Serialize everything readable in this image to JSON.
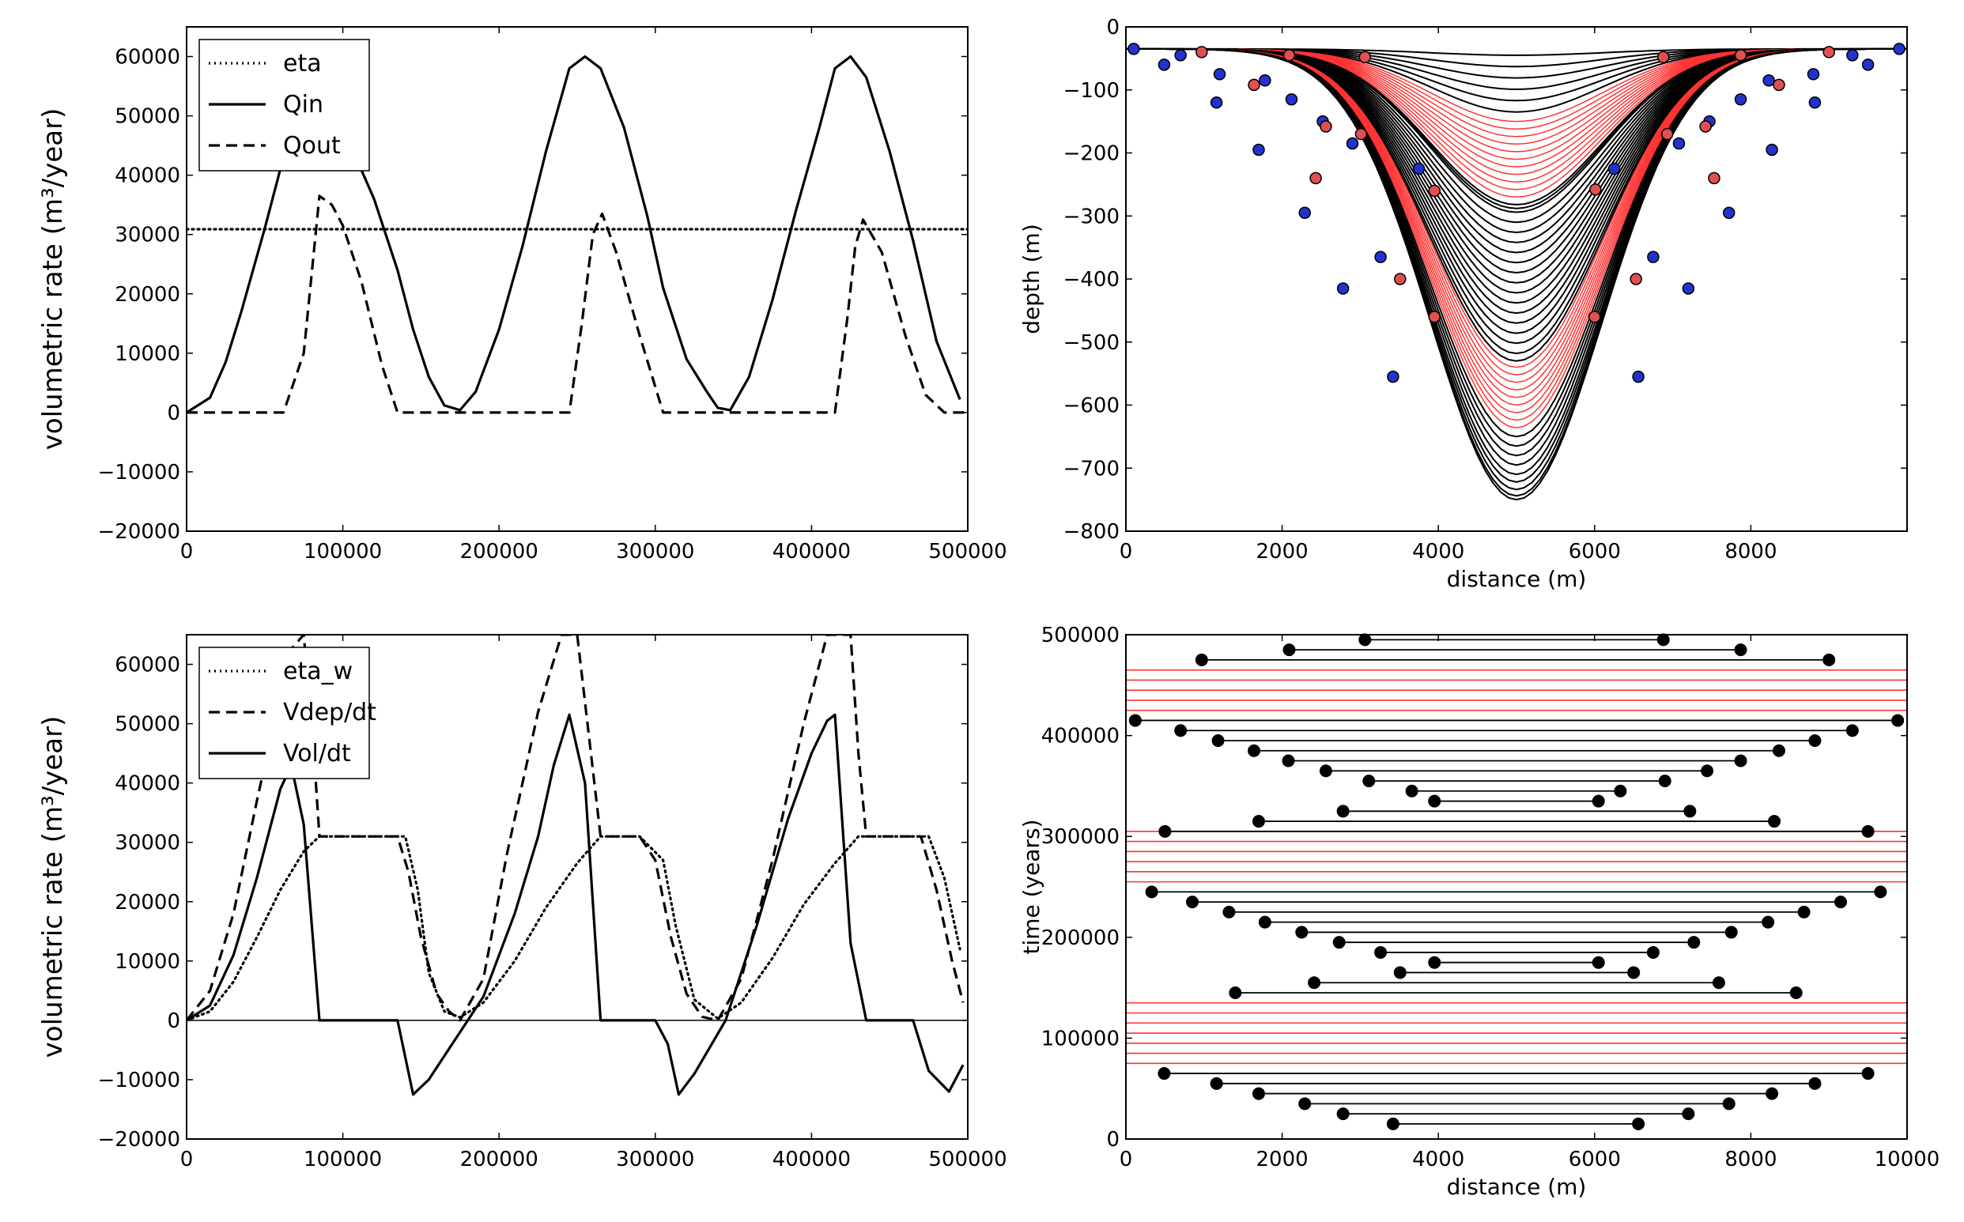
{
  "chart_data": [
    {
      "panel": "top-left",
      "type": "line",
      "title": "",
      "xlabel": "",
      "ylabel": "volumetric rate (m³/year)",
      "xlim": [
        0,
        500000
      ],
      "ylim": [
        -20000,
        65000
      ],
      "xticks": [
        0,
        100000,
        200000,
        300000,
        400000,
        500000
      ],
      "xtick_labels": [
        "0",
        "100000",
        "200000",
        "300000",
        "400000",
        "500000"
      ],
      "yticks": [
        -20000,
        -10000,
        0,
        10000,
        20000,
        30000,
        40000,
        50000,
        60000
      ],
      "ytick_labels": [
        "−20000",
        "−10000",
        "0",
        "10000",
        "20000",
        "30000",
        "40000",
        "50000",
        "60000"
      ],
      "legend_position": "top-left",
      "series": [
        {
          "name": "eta",
          "style": "dotted",
          "x": [
            0,
            500000
          ],
          "values": [
            30900,
            30900
          ]
        },
        {
          "name": "Qin",
          "style": "solid",
          "x": [
            0,
            15000,
            25000,
            35000,
            50000,
            65000,
            80000,
            90000,
            100000,
            110000,
            120000,
            135000,
            145000,
            155000,
            165000,
            175000,
            185000,
            200000,
            215000,
            230000,
            245000,
            255000,
            265000,
            280000,
            295000,
            305000,
            320000,
            333000,
            340000,
            348000,
            360000,
            375000,
            390000,
            405000,
            415000,
            425000,
            435000,
            450000,
            465000,
            480000,
            495000
          ],
          "values": [
            0,
            2500,
            8500,
            17000,
            31000,
            46000,
            53000,
            52500,
            47500,
            42000,
            36000,
            24000,
            14000,
            6000,
            1200,
            400,
            3500,
            14000,
            28000,
            44000,
            58000,
            60000,
            58000,
            48000,
            33000,
            21000,
            9000,
            3500,
            800,
            400,
            6000,
            19000,
            34000,
            48000,
            58000,
            60000,
            56500,
            44000,
            29000,
            12000,
            2200
          ]
        },
        {
          "name": "Qout",
          "style": "dashed",
          "x": [
            0,
            62000,
            75000,
            85000,
            93000,
            100000,
            112000,
            125000,
            135000,
            245000,
            253000,
            260000,
            266000,
            275000,
            290000,
            305000,
            342000,
            415000,
            423000,
            428000,
            433000,
            445000,
            460000,
            473000,
            485000,
            500000
          ],
          "values": [
            0,
            0,
            10000,
            36500,
            35000,
            31500,
            22000,
            8000,
            0,
            0,
            15000,
            30000,
            33500,
            27000,
            13000,
            0,
            0,
            0,
            16000,
            28000,
            32500,
            27000,
            13000,
            3000,
            0,
            0
          ]
        }
      ]
    },
    {
      "panel": "top-right",
      "type": "line",
      "title": "",
      "xlabel": "distance (m)",
      "ylabel": "depth (m)",
      "xlim": [
        0,
        10000
      ],
      "ylim": [
        -800,
        0
      ],
      "xticks": [
        0,
        2000,
        4000,
        6000,
        8000
      ],
      "xtick_labels": [
        "0",
        "2000",
        "4000",
        "6000",
        "8000"
      ],
      "yticks": [
        -800,
        -700,
        -600,
        -500,
        -400,
        -300,
        -200,
        -100,
        0
      ],
      "ytick_labels": [
        "−800",
        "−700",
        "−600",
        "−500",
        "−400",
        "−300",
        "−200",
        "−100",
        "0"
      ],
      "grid": false,
      "profile_shape": "gaussian channel cross-section centred at 5000 m, base -35 m",
      "black_profile_depths_group1": [
        -45,
        -63,
        -81,
        -99,
        -117,
        -135
      ],
      "red_profile_depths_group1": [
        -150,
        -162,
        -174,
        -186,
        -198,
        -210,
        -222,
        -234,
        -246,
        -258,
        -270
      ],
      "black_profile_depths_group2": [
        -282,
        -288,
        -294,
        -310,
        -326,
        -342,
        -358,
        -374,
        -390,
        -406,
        -422,
        -438,
        -454,
        -470,
        -486,
        -502,
        -518,
        -530
      ],
      "red_profile_depths_group2": [
        -540,
        -552,
        -564,
        -576,
        -588,
        -600,
        -612,
        -624,
        -636
      ],
      "black_profile_depths_group3": [
        -650,
        -665,
        -680,
        -695,
        -710,
        -722,
        -734,
        -744,
        -750
      ],
      "red_bank_points": [
        [
          970,
          -40
        ],
        [
          2090,
          -45
        ],
        [
          3060,
          -48
        ],
        [
          6880,
          -48
        ],
        [
          7870,
          -45
        ],
        [
          9000,
          -40
        ],
        [
          2430,
          -240
        ],
        [
          3010,
          -170
        ],
        [
          3950,
          -260
        ],
        [
          6010,
          -258
        ],
        [
          6930,
          -170
        ],
        [
          7530,
          -240
        ],
        [
          3510,
          -400
        ],
        [
          3950,
          -460
        ],
        [
          6000,
          -460
        ],
        [
          6530,
          -400
        ],
        [
          1640,
          -92
        ],
        [
          2560,
          -158
        ],
        [
          7420,
          -158
        ],
        [
          8360,
          -92
        ]
      ],
      "blue_bank_points": [
        [
          100,
          -35
        ],
        [
          490,
          -60
        ],
        [
          1160,
          -120
        ],
        [
          1700,
          -195
        ],
        [
          2290,
          -295
        ],
        [
          2780,
          -415
        ],
        [
          3420,
          -555
        ],
        [
          6560,
          -555
        ],
        [
          7200,
          -415
        ],
        [
          7720,
          -295
        ],
        [
          8270,
          -195
        ],
        [
          8820,
          -120
        ],
        [
          9500,
          -60
        ],
        [
          9900,
          -35
        ],
        [
          700,
          -45
        ],
        [
          1200,
          -75
        ],
        [
          1780,
          -85
        ],
        [
          2120,
          -115
        ],
        [
          2520,
          -150
        ],
        [
          2900,
          -185
        ],
        [
          3260,
          -365
        ],
        [
          3750,
          -225
        ],
        [
          6250,
          -225
        ],
        [
          6750,
          -365
        ],
        [
          7080,
          -185
        ],
        [
          7470,
          -150
        ],
        [
          7870,
          -115
        ],
        [
          8230,
          -85
        ],
        [
          8800,
          -75
        ],
        [
          9300,
          -45
        ]
      ]
    },
    {
      "panel": "bottom-left",
      "type": "line",
      "title": "",
      "xlabel": "",
      "ylabel": "volumetric rate (m³/year)",
      "xlim": [
        0,
        500000
      ],
      "ylim": [
        -20000,
        65000
      ],
      "xticks": [
        0,
        100000,
        200000,
        300000,
        400000,
        500000
      ],
      "xtick_labels": [
        "0",
        "100000",
        "200000",
        "300000",
        "400000",
        "500000"
      ],
      "yticks": [
        -20000,
        -10000,
        0,
        10000,
        20000,
        30000,
        40000,
        50000,
        60000
      ],
      "ytick_labels": [
        "−20000",
        "−10000",
        "0",
        "10000",
        "20000",
        "30000",
        "40000",
        "50000",
        "60000"
      ],
      "legend_position": "top-left",
      "series": [
        {
          "name": "eta_w",
          "style": "dotted",
          "x": [
            0,
            15000,
            30000,
            45000,
            60000,
            75000,
            85000,
            140000,
            148000,
            155000,
            165000,
            175000,
            190000,
            210000,
            230000,
            250000,
            265000,
            290000,
            305000,
            313000,
            325000,
            340000,
            355000,
            375000,
            395000,
            415000,
            430000,
            475000,
            485000,
            495000
          ],
          "values": [
            0,
            1500,
            6500,
            14000,
            22000,
            28500,
            31000,
            31000,
            22000,
            8000,
            1500,
            500,
            3000,
            10000,
            19000,
            26500,
            31000,
            31000,
            27000,
            16000,
            3500,
            300,
            3000,
            10500,
            19500,
            26500,
            31000,
            31000,
            24000,
            12000
          ]
        },
        {
          "name": "Vdep/dt",
          "style": "dashed",
          "x": [
            0,
            15000,
            30000,
            45000,
            55000,
            65000,
            75000,
            82000,
            85000,
            135000,
            142000,
            150000,
            160000,
            168000,
            175000,
            190000,
            205000,
            225000,
            240000,
            250000,
            265000,
            290000,
            300000,
            310000,
            320000,
            330000,
            340000,
            355000,
            375000,
            395000,
            410000,
            425000,
            430000,
            435000,
            470000,
            480000,
            490000,
            497000
          ],
          "values": [
            0,
            5000,
            18000,
            37000,
            49000,
            62000,
            65000,
            43000,
            31000,
            31000,
            25000,
            14000,
            4500,
            1500,
            0,
            7000,
            28000,
            52000,
            65000,
            65000,
            31000,
            31000,
            27000,
            14000,
            4500,
            600,
            0,
            7000,
            27000,
            50000,
            65000,
            65000,
            45000,
            31000,
            31000,
            22000,
            10000,
            3000
          ]
        },
        {
          "name": "Vol/dt",
          "style": "solid",
          "x": [
            0,
            15000,
            30000,
            45000,
            60000,
            67000,
            75000,
            85000,
            135000,
            145000,
            155000,
            165000,
            175000,
            190000,
            210000,
            225000,
            235000,
            245000,
            255000,
            265000,
            300000,
            308000,
            315000,
            325000,
            335000,
            345000,
            365000,
            385000,
            400000,
            410000,
            415000,
            425000,
            435000,
            465000,
            475000,
            488000,
            497000
          ],
          "values": [
            0,
            2500,
            11000,
            24000,
            39000,
            43000,
            33000,
            0,
            0,
            -12500,
            -10000,
            -6000,
            -2000,
            4000,
            18000,
            31000,
            43000,
            51500,
            40000,
            0,
            0,
            -4000,
            -12500,
            -9000,
            -4500,
            0,
            16000,
            34000,
            45000,
            50500,
            51500,
            13000,
            0,
            0,
            -8500,
            -12000,
            -7500
          ]
        },
        {
          "name": "",
          "style": "zero-line",
          "x": [
            0,
            500000
          ],
          "values": [
            0,
            0
          ]
        }
      ]
    },
    {
      "panel": "bottom-right",
      "type": "line",
      "title": "",
      "xlabel": "distance (m)",
      "ylabel": "time (years)",
      "xlim": [
        0,
        10000
      ],
      "ylim": [
        0,
        500000
      ],
      "xticks": [
        0,
        2000,
        4000,
        6000,
        8000,
        10000
      ],
      "xtick_labels": [
        "0",
        "2000",
        "4000",
        "6000",
        "8000",
        "10000"
      ],
      "yticks": [
        0,
        100000,
        200000,
        300000,
        400000,
        500000
      ],
      "ytick_labels": [
        "0",
        "100000",
        "200000",
        "300000",
        "400000",
        "500000"
      ],
      "red_bands": [
        [
          75000,
          135000
        ],
        [
          255000,
          305000
        ],
        [
          425000,
          465000
        ]
      ],
      "intervals": [
        {
          "t": 15000,
          "x0": 3420,
          "x1": 6560
        },
        {
          "t": 25000,
          "x0": 2780,
          "x1": 7200
        },
        {
          "t": 35000,
          "x0": 2290,
          "x1": 7720
        },
        {
          "t": 45000,
          "x0": 1700,
          "x1": 8270
        },
        {
          "t": 55000,
          "x0": 1160,
          "x1": 8820
        },
        {
          "t": 65000,
          "x0": 490,
          "x1": 9500
        },
        {
          "t": 145000,
          "x0": 1400,
          "x1": 8580
        },
        {
          "t": 155000,
          "x0": 2410,
          "x1": 7590
        },
        {
          "t": 165000,
          "x0": 3510,
          "x1": 6500
        },
        {
          "t": 175000,
          "x0": 3950,
          "x1": 6050
        },
        {
          "t": 185000,
          "x0": 3260,
          "x1": 6750
        },
        {
          "t": 195000,
          "x0": 2730,
          "x1": 7270
        },
        {
          "t": 205000,
          "x0": 2250,
          "x1": 7750
        },
        {
          "t": 215000,
          "x0": 1780,
          "x1": 8220
        },
        {
          "t": 225000,
          "x0": 1320,
          "x1": 8680
        },
        {
          "t": 235000,
          "x0": 850,
          "x1": 9150
        },
        {
          "t": 245000,
          "x0": 330,
          "x1": 9660
        },
        {
          "t": 305000,
          "x0": 500,
          "x1": 9500
        },
        {
          "t": 315000,
          "x0": 1700,
          "x1": 8300
        },
        {
          "t": 325000,
          "x0": 2780,
          "x1": 7220
        },
        {
          "t": 335000,
          "x0": 3950,
          "x1": 6050
        },
        {
          "t": 345000,
          "x0": 3660,
          "x1": 6330
        },
        {
          "t": 355000,
          "x0": 3110,
          "x1": 6900
        },
        {
          "t": 365000,
          "x0": 2560,
          "x1": 7440
        },
        {
          "t": 375000,
          "x0": 2080,
          "x1": 7870
        },
        {
          "t": 385000,
          "x0": 1640,
          "x1": 8360
        },
        {
          "t": 395000,
          "x0": 1180,
          "x1": 8820
        },
        {
          "t": 405000,
          "x0": 700,
          "x1": 9300
        },
        {
          "t": 415000,
          "x0": 120,
          "x1": 9880
        },
        {
          "t": 475000,
          "x0": 970,
          "x1": 9000
        },
        {
          "t": 485000,
          "x0": 2090,
          "x1": 7870
        },
        {
          "t": 495000,
          "x0": 3060,
          "x1": 6880
        }
      ]
    }
  ],
  "colors": {
    "black": "#000000",
    "red": "#ff3333",
    "blue": "#2233cc",
    "red_dot": "#e05050"
  }
}
